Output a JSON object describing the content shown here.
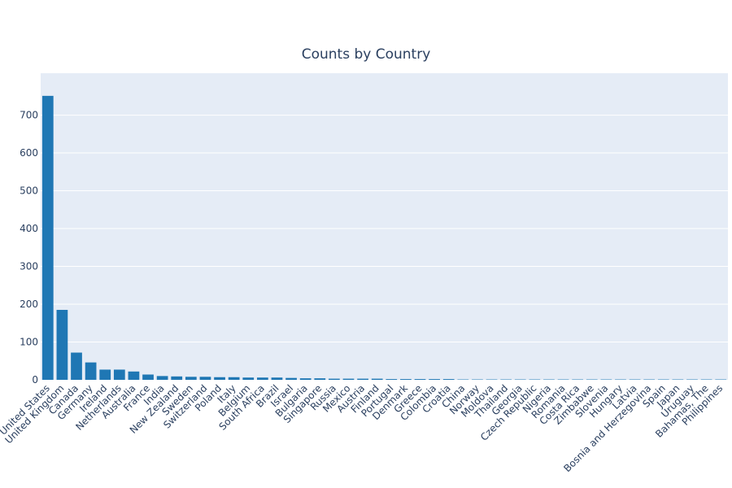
{
  "chart_data": {
    "type": "bar",
    "title": "Counts by Country",
    "xlabel": "",
    "ylabel": "",
    "ylim": [
      0,
      800
    ],
    "yticks": [
      0,
      100,
      200,
      300,
      400,
      500,
      600,
      700
    ],
    "grid": true,
    "legend": "none",
    "categories": [
      "United States",
      "United Kingdom",
      "Canada",
      "Germany",
      "Ireland",
      "Netherlands",
      "Australia",
      "France",
      "India",
      "New Zealand",
      "Sweden",
      "Switzerland",
      "Poland",
      "Italy",
      "Belgium",
      "South Africa",
      "Brazil",
      "Israel",
      "Bulgaria",
      "Singapore",
      "Russia",
      "Mexico",
      "Austria",
      "Finland",
      "Portugal",
      "Denmark",
      "Greece",
      "Colombia",
      "Croatia",
      "China",
      "Norway",
      "Moldova",
      "Thailand",
      "Georgia",
      "Czech Republic",
      "Nigeria",
      "Romania",
      "Costa Rica",
      "Zimbabwe",
      "Slovenia",
      "Hungary",
      "Latvia",
      "Bosnia and Herzegovina",
      "Spain",
      "Japan",
      "Uruguay",
      "Bahamas, The",
      "Philippines"
    ],
    "values": [
      751,
      185,
      72,
      46,
      27,
      27,
      22,
      14,
      10,
      9,
      8,
      8,
      7,
      7,
      6,
      6,
      6,
      5,
      4,
      4,
      3,
      3,
      3,
      3,
      2,
      2,
      2,
      2,
      2,
      1,
      1,
      1,
      1,
      1,
      1,
      1,
      1,
      1,
      1,
      1,
      1,
      1,
      1,
      1,
      1,
      1,
      1,
      1
    ],
    "colors": {
      "bar": "#1f77b4",
      "plot_bg": "#e5ecf6",
      "text": "#2a3f5f",
      "grid": "#ffffff"
    }
  }
}
